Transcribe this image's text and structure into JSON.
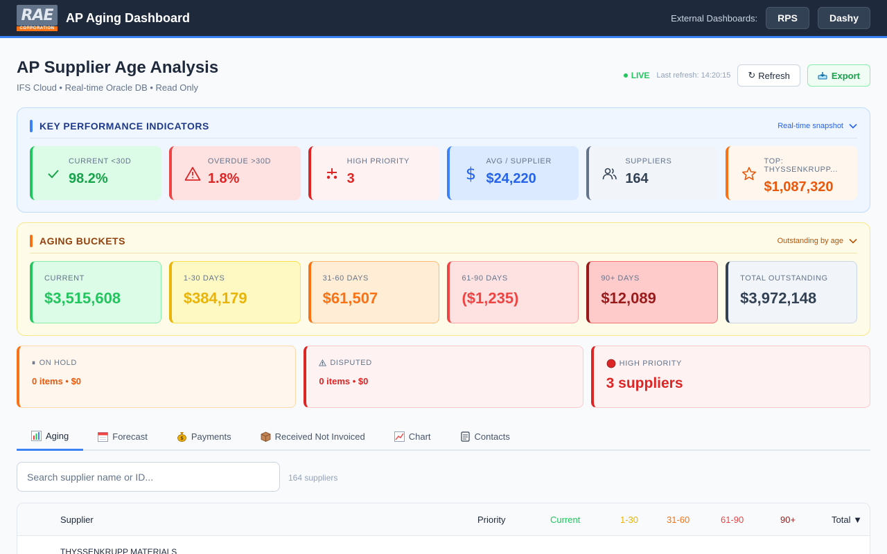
{
  "header": {
    "logo_text": "RAE",
    "logo_subtext": "CORPORATION",
    "app_title": "AP Aging Dashboard",
    "external_label": "External Dashboards:",
    "external_buttons": [
      "RPS",
      "Dashy"
    ]
  },
  "page": {
    "title": "AP Supplier Age Analysis",
    "subtitle": "IFS Cloud • Real-time Oracle DB • Read Only",
    "live_label": "LIVE",
    "last_refresh": "Last refresh: 14:20:15",
    "refresh_label": "Refresh",
    "export_label": "Export"
  },
  "kpi_panel": {
    "title": "KEY PERFORMANCE INDICATORS",
    "link": "Real-time snapshot",
    "cards": [
      {
        "label": "CURRENT <30D",
        "value": "98.2%",
        "icon": "check-icon",
        "color": "#16a34a"
      },
      {
        "label": "OVERDUE >30D",
        "value": "1.8%",
        "icon": "warning-icon",
        "color": "#dc2626"
      },
      {
        "label": "HIGH PRIORITY",
        "value": "3",
        "icon": "priority-icon",
        "color": "#dc2626"
      },
      {
        "label": "AVG / SUPPLIER",
        "value": "$24,220",
        "icon": "dollar-icon",
        "color": "#2563eb"
      },
      {
        "label": "SUPPLIERS",
        "value": "164",
        "icon": "users-icon",
        "color": "#334155"
      },
      {
        "label": "TOP: THYSSENKRUPP...",
        "value": "$1,087,320",
        "icon": "star-icon",
        "color": "#ea580c"
      }
    ]
  },
  "aging_panel": {
    "title": "AGING BUCKETS",
    "link": "Outstanding by age",
    "buckets": [
      {
        "label": "CURRENT",
        "value": "$3,515,608",
        "color": "#22c55e"
      },
      {
        "label": "1-30 DAYS",
        "value": "$384,179",
        "color": "#eab308"
      },
      {
        "label": "31-60 DAYS",
        "value": "$61,507",
        "color": "#f97316"
      },
      {
        "label": "61-90 DAYS",
        "value": "($1,235)",
        "color": "#ef4444"
      },
      {
        "label": "90+ DAYS",
        "value": "$12,089",
        "color": "#991b1b"
      },
      {
        "label": "TOTAL OUTSTANDING",
        "value": "$3,972,148",
        "color": "#334155"
      }
    ]
  },
  "status_cards": [
    {
      "label": "ON HOLD",
      "icon": "pause-icon",
      "value": "0 items • $0"
    },
    {
      "label": "DISPUTED",
      "icon": "warning-icon",
      "value": "0 items • $0"
    },
    {
      "label": "HIGH PRIORITY",
      "icon": "red-circle-icon",
      "value": "3 suppliers"
    }
  ],
  "tabs": [
    {
      "label": "Aging",
      "icon": "bar-chart-icon",
      "active": true
    },
    {
      "label": "Forecast",
      "icon": "calendar-icon",
      "active": false
    },
    {
      "label": "Payments",
      "icon": "money-bag-icon",
      "active": false
    },
    {
      "label": "Received Not Invoiced",
      "icon": "package-icon",
      "active": false
    },
    {
      "label": "Chart",
      "icon": "line-chart-icon",
      "active": false
    },
    {
      "label": "Contacts",
      "icon": "contacts-icon",
      "active": false
    }
  ],
  "search": {
    "placeholder": "Search supplier name or ID...",
    "count": "164 suppliers"
  },
  "table": {
    "columns": {
      "supplier": "Supplier",
      "priority": "Priority",
      "current": "Current",
      "d1_30": "1-30",
      "d31_60": "31-60",
      "d61_90": "61-90",
      "d90p": "90+",
      "total": "Total ▼"
    },
    "rows": [
      {
        "supplier": "THYSSENKRUPP MATERIALS"
      }
    ]
  }
}
